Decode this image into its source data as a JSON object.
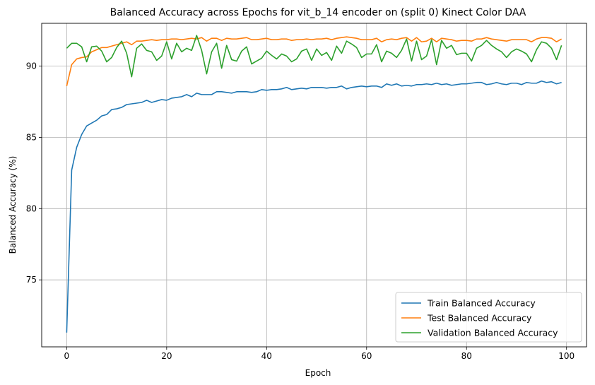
{
  "chart_data": {
    "type": "line",
    "title": "Balanced Accuracy across Epochs for vit_b_14 encoder on (split 0) Kinect Color DAA",
    "xlabel": "Epoch",
    "ylabel": "Balanced Accuracy (%)",
    "xlim": [
      -5,
      104
    ],
    "ylim": [
      70.3,
      93.0
    ],
    "xticks": [
      0,
      20,
      40,
      60,
      80,
      100
    ],
    "yticks": [
      75,
      80,
      85,
      90
    ],
    "grid": true,
    "legend_position": "lower right",
    "x": [
      0,
      1,
      2,
      3,
      4,
      5,
      6,
      7,
      8,
      9,
      10,
      11,
      12,
      13,
      14,
      15,
      16,
      17,
      18,
      19,
      20,
      21,
      22,
      23,
      24,
      25,
      26,
      27,
      28,
      29,
      30,
      31,
      32,
      33,
      34,
      35,
      36,
      37,
      38,
      39,
      40,
      41,
      42,
      43,
      44,
      45,
      46,
      47,
      48,
      49,
      50,
      51,
      52,
      53,
      54,
      55,
      56,
      57,
      58,
      59,
      60,
      61,
      62,
      63,
      64,
      65,
      66,
      67,
      68,
      69,
      70,
      71,
      72,
      73,
      74,
      75,
      76,
      77,
      78,
      79,
      80,
      81,
      82,
      83,
      84,
      85,
      86,
      87,
      88,
      89,
      90,
      91,
      92,
      93,
      94,
      95,
      96,
      97,
      98,
      99
    ],
    "series": [
      {
        "name": "Train Balanced Accuracy",
        "color": "#1f77b4",
        "values": [
          71.3,
          82.7,
          84.3,
          85.2,
          85.8,
          86.0,
          86.2,
          86.5,
          86.6,
          86.95,
          87.0,
          87.1,
          87.3,
          87.35,
          87.4,
          87.45,
          87.6,
          87.45,
          87.55,
          87.65,
          87.6,
          87.75,
          87.8,
          87.85,
          88.0,
          87.85,
          88.1,
          88.0,
          88.0,
          88.0,
          88.2,
          88.2,
          88.15,
          88.1,
          88.2,
          88.2,
          88.2,
          88.15,
          88.2,
          88.35,
          88.3,
          88.35,
          88.35,
          88.4,
          88.5,
          88.35,
          88.4,
          88.45,
          88.4,
          88.5,
          88.5,
          88.5,
          88.45,
          88.5,
          88.5,
          88.6,
          88.4,
          88.5,
          88.55,
          88.6,
          88.55,
          88.6,
          88.6,
          88.5,
          88.75,
          88.65,
          88.75,
          88.6,
          88.65,
          88.6,
          88.7,
          88.7,
          88.75,
          88.7,
          88.8,
          88.7,
          88.75,
          88.65,
          88.7,
          88.75,
          88.75,
          88.8,
          88.85,
          88.85,
          88.7,
          88.75,
          88.85,
          88.75,
          88.7,
          88.8,
          88.8,
          88.7,
          88.85,
          88.8,
          88.8,
          88.95,
          88.85,
          88.9,
          88.75,
          88.85
        ]
      },
      {
        "name": "Test Balanced Accuracy",
        "color": "#ff7f0e",
        "values": [
          88.6,
          90.1,
          90.5,
          90.6,
          90.65,
          91.0,
          91.15,
          91.3,
          91.3,
          91.4,
          91.5,
          91.6,
          91.7,
          91.5,
          91.75,
          91.75,
          91.8,
          91.85,
          91.8,
          91.85,
          91.85,
          91.9,
          91.9,
          91.85,
          91.9,
          91.95,
          91.9,
          92.0,
          91.75,
          91.95,
          91.95,
          91.8,
          91.95,
          91.9,
          91.9,
          91.95,
          92.0,
          91.85,
          91.85,
          91.9,
          91.95,
          91.85,
          91.85,
          91.9,
          91.9,
          91.8,
          91.85,
          91.85,
          91.9,
          91.85,
          91.9,
          91.9,
          91.95,
          91.85,
          91.95,
          92.0,
          92.05,
          92.0,
          91.95,
          91.85,
          91.85,
          91.85,
          91.95,
          91.7,
          91.85,
          91.9,
          91.85,
          91.95,
          92.0,
          91.75,
          92.0,
          91.7,
          91.75,
          91.95,
          91.7,
          91.95,
          91.9,
          91.85,
          91.75,
          91.8,
          91.8,
          91.75,
          91.9,
          91.9,
          92.0,
          91.9,
          91.85,
          91.8,
          91.75,
          91.85,
          91.85,
          91.85,
          91.85,
          91.7,
          91.9,
          92.0,
          92.0,
          91.95,
          91.7,
          91.9
        ]
      },
      {
        "name": "Validation Balanced Accuracy",
        "color": "#2ca02c",
        "values": [
          91.25,
          91.6,
          91.6,
          91.35,
          90.3,
          91.35,
          91.4,
          91.05,
          90.3,
          90.6,
          91.3,
          91.75,
          90.9,
          89.25,
          91.25,
          91.55,
          91.1,
          91.0,
          90.4,
          90.7,
          91.7,
          90.5,
          91.6,
          91.0,
          91.25,
          91.1,
          92.15,
          91.1,
          89.45,
          91.0,
          91.6,
          89.85,
          91.45,
          90.45,
          90.35,
          91.05,
          91.35,
          90.15,
          90.35,
          90.55,
          91.05,
          90.75,
          90.5,
          90.85,
          90.7,
          90.3,
          90.5,
          91.05,
          91.2,
          90.4,
          91.2,
          90.75,
          90.95,
          90.4,
          91.4,
          90.9,
          91.75,
          91.55,
          91.3,
          90.6,
          90.85,
          90.85,
          91.5,
          90.3,
          91.05,
          90.9,
          90.6,
          91.1,
          91.9,
          90.35,
          91.75,
          90.45,
          90.7,
          91.85,
          90.1,
          91.8,
          91.25,
          91.45,
          90.8,
          90.9,
          90.9,
          90.35,
          91.25,
          91.45,
          91.8,
          91.45,
          91.2,
          91.0,
          90.6,
          91.0,
          91.2,
          91.05,
          90.85,
          90.3,
          91.15,
          91.7,
          91.6,
          91.25,
          90.45,
          91.45
        ]
      }
    ]
  }
}
